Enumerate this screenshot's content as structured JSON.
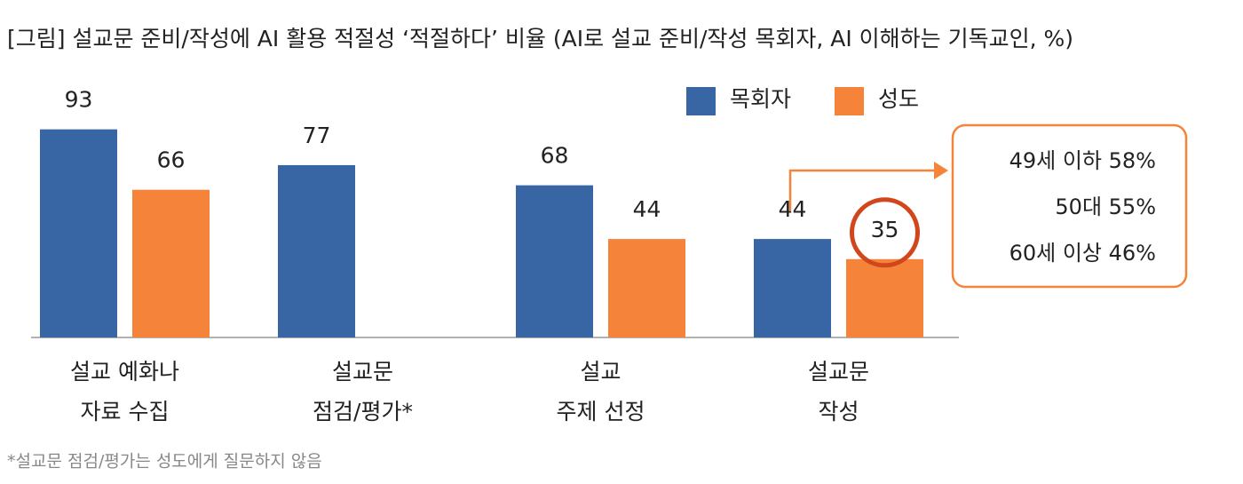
{
  "chart_data": {
    "type": "bar",
    "title": "[그림] 설교문 준비/작성에 AI 활용 적절성 ‘적절하다’ 비율 (AI로 설교 준비/작성 목회자, AI 이해하는 기독교인, %)",
    "categories": [
      [
        "설교 예화나",
        "자료 수집"
      ],
      [
        "설교문",
        "점검/평가*"
      ],
      [
        "설교",
        "주제 선정"
      ],
      [
        "설교문",
        "작성"
      ]
    ],
    "series": [
      {
        "name": "목회자",
        "color": "#3865a3",
        "values": [
          93,
          77,
          68,
          44
        ]
      },
      {
        "name": "성도",
        "color": "#f5843a",
        "values": [
          66,
          null,
          44,
          35
        ]
      }
    ],
    "ylim": [
      0,
      100
    ],
    "annotation": [
      "49세 이하 58%",
      "50대 55%",
      "60세 이상 46%"
    ],
    "footnote": "*설교문 점검/평가는 성도에게 질문하지 않음"
  }
}
